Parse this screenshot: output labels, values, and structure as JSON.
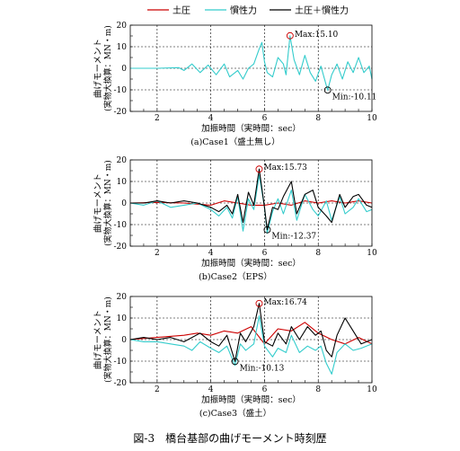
{
  "figure_caption": "図-3　橋台基部の曲げモーメント時刻歴",
  "legend": [
    {
      "label": "土圧",
      "color": "#cc0000"
    },
    {
      "label": "慣性力",
      "color": "#33cccc"
    },
    {
      "label": "土圧＋慣性力",
      "color": "#000000"
    }
  ],
  "chart_data": [
    {
      "type": "line",
      "caption": "(a)Case1（盛土無し）",
      "xlabel": "加振時間（実時間：sec）",
      "ylabel_line1": "曲げモーメント",
      "ylabel_line2": "(実物大換算：MN・m)",
      "xlim": [
        1,
        10
      ],
      "ylim": [
        -20,
        20
      ],
      "xticks": [
        2,
        4,
        6,
        8,
        10
      ],
      "yticks": [
        -20,
        -10,
        0,
        10,
        20
      ],
      "grid": true,
      "annotations": [
        {
          "label": "Max:15.10",
          "x": 6.95,
          "y": 15.1
        },
        {
          "label": "Min:-10.11",
          "x": 8.35,
          "y": -10.11
        }
      ],
      "series": [
        {
          "name": "慣性力",
          "color": "#33cccc",
          "x": [
            1.0,
            2.0,
            2.8,
            3.0,
            3.3,
            3.6,
            3.9,
            4.2,
            4.5,
            4.7,
            5.0,
            5.2,
            5.4,
            5.6,
            5.8,
            5.9,
            6.0,
            6.1,
            6.3,
            6.5,
            6.7,
            6.8,
            6.95,
            7.1,
            7.3,
            7.5,
            7.7,
            7.9,
            8.1,
            8.3,
            8.35,
            8.5,
            8.7,
            8.9,
            9.1,
            9.3,
            9.5,
            9.7,
            9.9,
            10.0
          ],
          "y": [
            0,
            0,
            0.3,
            -1.0,
            2.0,
            -2.0,
            1.5,
            -3.0,
            2.0,
            -4.0,
            -1.0,
            -5.0,
            0,
            2.0,
            9.0,
            12.0,
            3.0,
            -2.0,
            -4.0,
            5.0,
            2.0,
            -3.0,
            15.1,
            4.0,
            -3.0,
            6.0,
            -2.0,
            -6.0,
            1.0,
            -8.0,
            -10.11,
            -3.0,
            2.0,
            -5.0,
            3.0,
            -2.0,
            5.0,
            -2.0,
            1.0,
            -5.0
          ]
        }
      ]
    },
    {
      "type": "line",
      "caption": "(b)Case2（EPS）",
      "xlabel": "加振時間（実時間：sec）",
      "ylabel_line1": "曲げモーメント",
      "ylabel_line2": "(実物大換算：MN・m)",
      "xlim": [
        1,
        10
      ],
      "ylim": [
        -20,
        20
      ],
      "xticks": [
        2,
        4,
        6,
        8,
        10
      ],
      "yticks": [
        -20,
        -10,
        0,
        10,
        20
      ],
      "grid": true,
      "annotations": [
        {
          "label": "Max:15.73",
          "x": 5.8,
          "y": 15.73
        },
        {
          "label": "Min:-12.37",
          "x": 6.1,
          "y": -12.37
        }
      ],
      "series": [
        {
          "name": "土圧",
          "color": "#cc0000",
          "x": [
            1,
            2,
            3,
            4,
            4.5,
            5,
            5.5,
            6,
            6.5,
            7,
            7.5,
            8,
            8.5,
            9,
            9.5,
            10
          ],
          "y": [
            0,
            0.3,
            0,
            -1.0,
            1.0,
            0,
            -1.0,
            -1.0,
            0,
            -1.0,
            1.0,
            0,
            1.0,
            0,
            1.0,
            0
          ]
        },
        {
          "name": "慣性力",
          "color": "#33cccc",
          "x": [
            1,
            1.5,
            2,
            2.5,
            3,
            3.5,
            4,
            4.3,
            4.6,
            4.8,
            5.0,
            5.2,
            5.4,
            5.6,
            5.8,
            6.0,
            6.1,
            6.3,
            6.5,
            6.7,
            7.0,
            7.2,
            7.5,
            7.8,
            8.0,
            8.3,
            8.5,
            8.8,
            9.0,
            9.3,
            9.5,
            9.8,
            10
          ],
          "y": [
            0,
            -1,
            1,
            -2,
            -1,
            0,
            -3,
            -6,
            -2,
            -7,
            3,
            -13,
            2,
            -3,
            13,
            -2,
            -14,
            -4,
            2,
            -5,
            6,
            -8,
            4,
            -3,
            -6,
            1,
            -8,
            3,
            -5,
            -2,
            2,
            -4,
            -3
          ]
        },
        {
          "name": "土圧＋慣性力",
          "color": "#000000",
          "x": [
            1,
            1.5,
            2,
            2.5,
            3,
            3.5,
            4,
            4.3,
            4.6,
            4.8,
            5.0,
            5.2,
            5.4,
            5.6,
            5.8,
            6.0,
            6.1,
            6.3,
            6.5,
            6.7,
            7.0,
            7.2,
            7.5,
            7.8,
            8.0,
            8.3,
            8.5,
            8.8,
            9.0,
            9.3,
            9.5,
            9.8,
            10
          ],
          "y": [
            0,
            0,
            1,
            0,
            1,
            0,
            -2,
            -4,
            -1,
            -5,
            4,
            -9,
            5,
            -1,
            15.73,
            -2,
            -12.37,
            -2,
            -3,
            3,
            10,
            -5,
            4,
            6,
            -2,
            -6,
            -9,
            4,
            -2,
            3,
            4,
            -1,
            -2
          ]
        }
      ]
    },
    {
      "type": "line",
      "caption": "(c)Case3（盛土）",
      "xlabel": "加振時間（実時間：sec）",
      "ylabel_line1": "曲げモーメント",
      "ylabel_line2": "(実物大換算：MN・m)",
      "xlim": [
        1,
        10
      ],
      "ylim": [
        -20,
        20
      ],
      "xticks": [
        2,
        4,
        6,
        8,
        10
      ],
      "yticks": [
        -20,
        -10,
        0,
        10,
        20
      ],
      "grid": true,
      "annotations": [
        {
          "label": "Max:16.74",
          "x": 5.8,
          "y": 16.74
        },
        {
          "label": "Min:-10.13",
          "x": 4.9,
          "y": -10.13
        }
      ],
      "series": [
        {
          "name": "土圧",
          "color": "#cc0000",
          "x": [
            1,
            2,
            3,
            3.5,
            4,
            4.5,
            5,
            5.5,
            6,
            6.5,
            7,
            7.5,
            8,
            8.5,
            9,
            9.5,
            10
          ],
          "y": [
            0,
            1,
            2,
            3,
            2,
            4,
            3,
            6,
            -2,
            5,
            4,
            8,
            3,
            0,
            -2,
            1,
            -2
          ]
        },
        {
          "name": "慣性力",
          "color": "#33cccc",
          "x": [
            1,
            1.5,
            2,
            2.5,
            3,
            3.3,
            3.6,
            4.0,
            4.3,
            4.6,
            4.9,
            5.1,
            5.3,
            5.6,
            5.8,
            6.0,
            6.3,
            6.5,
            6.8,
            7.0,
            7.3,
            7.6,
            7.9,
            8.1,
            8.3,
            8.5,
            8.7,
            9.0,
            9.3,
            9.6,
            10
          ],
          "y": [
            0,
            -1,
            -1,
            -2,
            -3,
            -5,
            -1,
            -4,
            -6,
            -3,
            -12,
            -2,
            -5,
            -2,
            11,
            -3,
            -8,
            -4,
            -6,
            2,
            -6,
            -3,
            -5,
            -3,
            -11,
            -16,
            -6,
            -2,
            -5,
            -4,
            -2
          ]
        },
        {
          "name": "土圧＋慣性力",
          "color": "#000000",
          "x": [
            1,
            1.5,
            2,
            2.5,
            3,
            3.3,
            3.6,
            4.0,
            4.3,
            4.6,
            4.9,
            5.1,
            5.3,
            5.6,
            5.8,
            6.0,
            6.3,
            6.5,
            6.8,
            7.0,
            7.3,
            7.6,
            7.9,
            8.1,
            8.3,
            8.5,
            8.7,
            9.0,
            9.3,
            9.6,
            10
          ],
          "y": [
            0,
            1,
            0,
            1,
            -1,
            1,
            3,
            -1,
            -3,
            2,
            -10.13,
            3,
            -1,
            6,
            16.74,
            -1,
            -3,
            3,
            -2,
            6,
            0,
            6,
            2,
            4,
            -5,
            -8,
            2,
            10,
            4,
            -2,
            0
          ]
        }
      ]
    }
  ]
}
